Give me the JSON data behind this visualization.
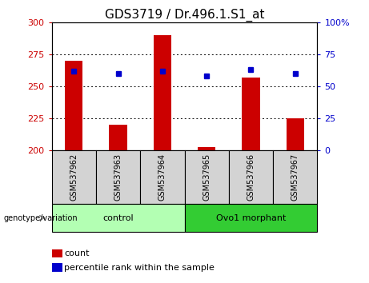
{
  "title": "GDS3719 / Dr.496.1.S1_at",
  "samples": [
    "GSM537962",
    "GSM537963",
    "GSM537964",
    "GSM537965",
    "GSM537966",
    "GSM537967"
  ],
  "counts": [
    270,
    220,
    290,
    202,
    257,
    225
  ],
  "percentiles": [
    62,
    60,
    62,
    58,
    63,
    60
  ],
  "ylim_left": [
    200,
    300
  ],
  "ylim_right": [
    0,
    100
  ],
  "yticks_left": [
    200,
    225,
    250,
    275,
    300
  ],
  "yticks_right": [
    0,
    25,
    50,
    75,
    100
  ],
  "bar_color": "#cc0000",
  "dot_color": "#0000cc",
  "bar_bottom": 200,
  "groups": [
    {
      "label": "control",
      "indices": [
        0,
        1,
        2
      ]
    },
    {
      "label": "Ovo1 morphant",
      "indices": [
        3,
        4,
        5
      ]
    }
  ],
  "group_label": "genotype/variation",
  "legend_count": "count",
  "legend_percentile": "percentile rank within the sample",
  "axis_color_left": "#cc0000",
  "axis_color_right": "#0000cc",
  "bg_color_sample": "#d3d3d3",
  "bg_color_group_light": "#b3ffb3",
  "bg_color_group_dark": "#33cc33",
  "title_fontsize": 11
}
